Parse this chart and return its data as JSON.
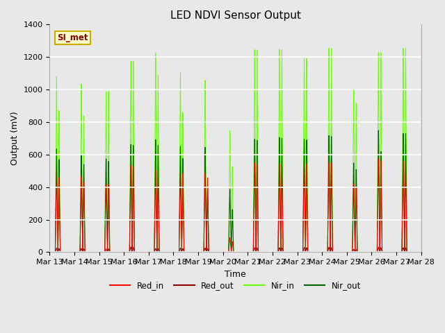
{
  "title": "LED NDVI Sensor Output",
  "xlabel": "Time",
  "ylabel": "Output (mV)",
  "ylim": [
    0,
    1400
  ],
  "yticks": [
    0,
    200,
    400,
    600,
    800,
    1000,
    1200,
    1400
  ],
  "xtick_labels": [
    "Mar 13",
    "Mar 14",
    "Mar 15",
    "Mar 16",
    "Mar 17",
    "Mar 18",
    "Mar 19",
    "Mar 20",
    "Mar 21",
    "Mar 22",
    "Mar 23",
    "Mar 24",
    "Mar 25",
    "Mar 26",
    "Mar 27",
    "Mar 28"
  ],
  "annotation_text": "SI_met",
  "colors": {
    "Red_in": "#ff0000",
    "Red_out": "#8b0000",
    "Nir_in": "#66ff00",
    "Nir_out": "#006400"
  },
  "background_color": "#e8e8e8",
  "axes_bg": "#e8e8e8",
  "grid_color": "#ffffff",
  "nir_in_peaks_A": [
    1080,
    1035,
    990,
    1180,
    1230,
    1110,
    1065,
    755,
    1255,
    1255,
    1200,
    1260,
    1000,
    1230,
    1255
  ],
  "nir_in_peaks_B": [
    870,
    840,
    995,
    1180,
    1095,
    865,
    450,
    530,
    1255,
    1255,
    1200,
    1260,
    920,
    1230,
    1255
  ],
  "nir_out_peaks_A": [
    635,
    600,
    575,
    665,
    695,
    655,
    650,
    390,
    700,
    710,
    700,
    720,
    550,
    750,
    730
  ],
  "nir_out_peaks_B": [
    570,
    540,
    560,
    660,
    660,
    580,
    400,
    265,
    695,
    705,
    695,
    715,
    510,
    620,
    730
  ],
  "red_in_peaks_A": [
    500,
    465,
    415,
    535,
    510,
    500,
    490,
    90,
    555,
    545,
    550,
    555,
    420,
    575,
    560
  ],
  "red_in_peaks_B": [
    460,
    430,
    415,
    530,
    505,
    490,
    460,
    65,
    545,
    540,
    545,
    550,
    400,
    560,
    555
  ],
  "red_out_peaks_A": [
    25,
    22,
    20,
    32,
    22,
    25,
    25,
    5,
    28,
    28,
    30,
    30,
    18,
    30,
    28
  ],
  "red_out_peaks_B": [
    22,
    20,
    20,
    30,
    22,
    22,
    22,
    4,
    26,
    26,
    28,
    28,
    16,
    28,
    26
  ]
}
